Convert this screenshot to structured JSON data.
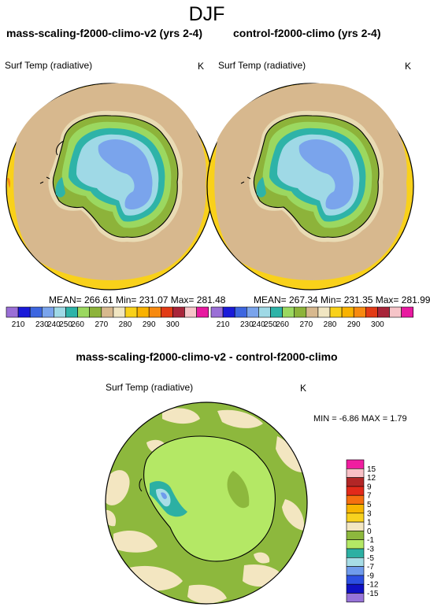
{
  "figure": {
    "season": "DJF"
  },
  "left_panel": {
    "title": "mass-scaling-f2000-climo-v2 (yrs 2-4)",
    "variable": "Surf Temp (radiative)",
    "units": "K",
    "stats": "MEAN= 266.61  Min= 231.07  Max= 281.48"
  },
  "right_panel": {
    "title": "control-f2000-climo (yrs 2-4)",
    "variable": "Surf Temp (radiative)",
    "units": "K",
    "stats": "MEAN= 267.34  Min= 231.35  Max= 281.99"
  },
  "diff_panel": {
    "title": "mass-scaling-f2000-climo-v2 - control-f2000-climo",
    "variable": "Surf Temp (radiative)",
    "units": "K",
    "stats": "MIN =  -6.86 MAX =   1.79"
  },
  "colorbar_abs": {
    "labels": [
      "210",
      "230",
      "240",
      "250",
      "260",
      "270",
      "280",
      "290",
      "300"
    ],
    "colors": [
      "#9a6fd6",
      "#1a1ad9",
      "#3d66e0",
      "#7aa4ec",
      "#9fd9e6",
      "#2eb3a8",
      "#9bd860",
      "#8db33a",
      "#d7b88e",
      "#f1e6c2",
      "#f9d11a",
      "#f9b200",
      "#f78a10",
      "#e23b16",
      "#a8253a",
      "#f6c4c8",
      "#e81aa0"
    ]
  },
  "colorbar_diff": {
    "labels": [
      "15",
      "12",
      "9",
      "7",
      "5",
      "3",
      "1",
      "0",
      "-1",
      "-3",
      "-5",
      "-7",
      "-9",
      "-12",
      "-15"
    ],
    "colors": [
      "#f01ea0",
      "#f8c0c6",
      "#b22626",
      "#e22a1a",
      "#f56f10",
      "#f8b500",
      "#f8d21f",
      "#f3e6c1",
      "#8db83d",
      "#b4e865",
      "#2cb0a3",
      "#a7dde6",
      "#6f9bec",
      "#2c4fe2",
      "#0f10c4",
      "#9774d8"
    ]
  }
}
